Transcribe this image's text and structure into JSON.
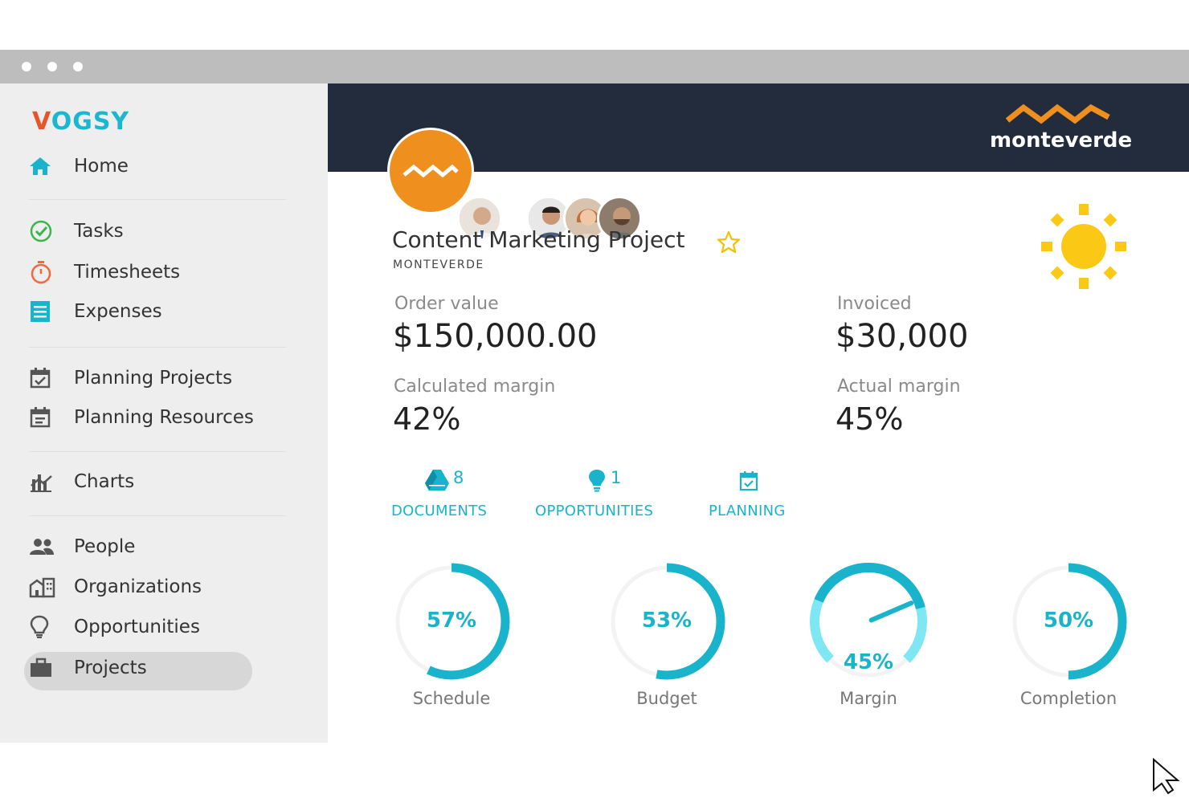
{
  "sidebar": {
    "logo": {
      "v": "V",
      "rest": "OGSY"
    },
    "items": [
      {
        "label": "Home",
        "icon": "home-icon"
      },
      {
        "label": "Tasks",
        "icon": "check-circle-icon"
      },
      {
        "label": "Timesheets",
        "icon": "stopwatch-icon"
      },
      {
        "label": "Expenses",
        "icon": "receipt-icon"
      },
      {
        "label": "Planning Projects",
        "icon": "calendar-check-icon"
      },
      {
        "label": "Planning Resources",
        "icon": "calendar-list-icon"
      },
      {
        "label": "Charts",
        "icon": "chart-icon"
      },
      {
        "label": "People",
        "icon": "people-icon"
      },
      {
        "label": "Organizations",
        "icon": "building-icon"
      },
      {
        "label": "Opportunities",
        "icon": "lightbulb-icon"
      },
      {
        "label": "Projects",
        "icon": "briefcase-icon",
        "active": true
      }
    ]
  },
  "header": {
    "brand": "monteverde"
  },
  "project": {
    "title": "Content Marketing Project",
    "organization": "MONTEVERDE",
    "favorite": false,
    "weather_icon": "sun-icon"
  },
  "metrics": {
    "order_value_label": "Order value",
    "order_value": "$150,000.00",
    "invoiced_label": "Invoiced",
    "invoiced": "$30,000",
    "calc_margin_label": "Calculated margin",
    "calc_margin": "42%",
    "actual_margin_label": "Actual margin",
    "actual_margin": "45%"
  },
  "links": {
    "documents_count": "8",
    "documents_label": "DOCUMENTS",
    "opportunities_count": "1",
    "opportunities_label": "OPPORTUNITIES",
    "planning_label": "PLANNING"
  },
  "gauges": [
    {
      "label": "Schedule",
      "value_text": "57%",
      "fraction": 0.57
    },
    {
      "label": "Budget",
      "value_text": "53%",
      "fraction": 0.53
    },
    {
      "label": "Margin",
      "value_text": "45%",
      "fraction": 0.45
    },
    {
      "label": "Completion",
      "value_text": "50%",
      "fraction": 0.5
    }
  ],
  "colors": {
    "accent": "#1ab3cc",
    "brand_orange": "#ef8f1d",
    "header_bg": "#232c3c",
    "sun": "#fbc815"
  }
}
